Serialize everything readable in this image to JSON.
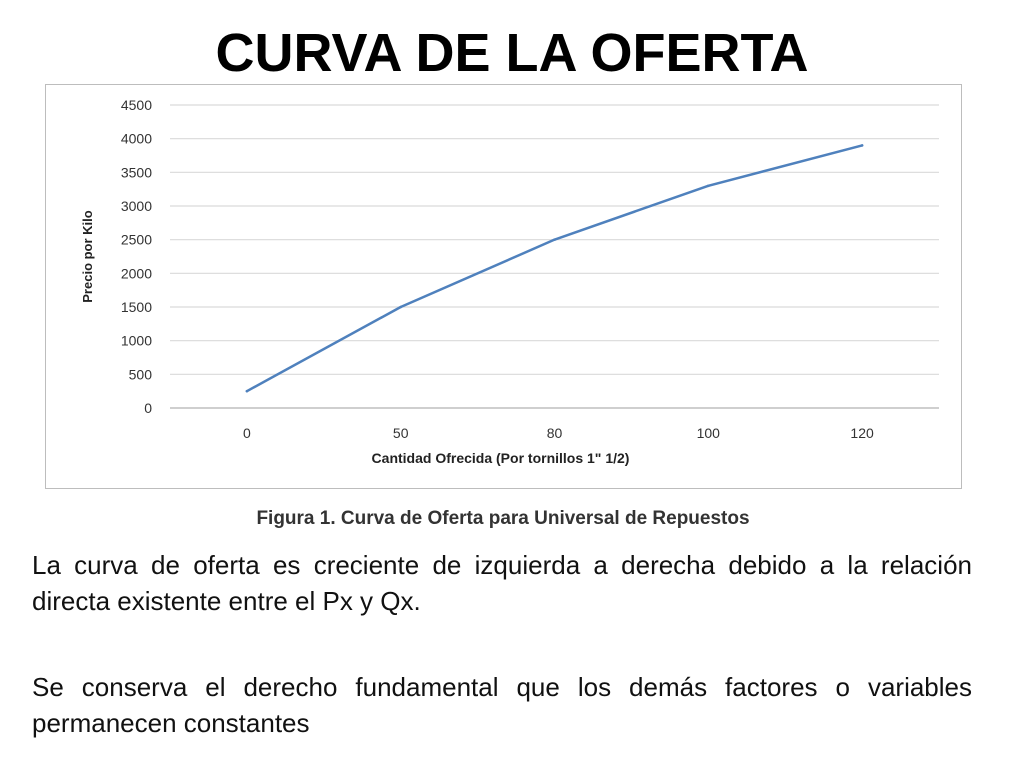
{
  "slide": {
    "title": "CURVA DE LA OFERTA",
    "caption": "Figura 1. Curva de Oferta para Universal de Repuestos",
    "paragraphs": [
      "La curva de oferta es creciente de izquierda a derecha debido a la relación directa existente entre el Px y Qx.",
      "Se conserva el derecho fundamental que los demás factores o variables permanecen constantes"
    ]
  },
  "chart_data": {
    "type": "line",
    "x": [
      "0",
      "50",
      "80",
      "100",
      "120"
    ],
    "series": [
      {
        "values": [
          250,
          1500,
          2500,
          3300,
          3900
        ]
      }
    ],
    "xlabel": "Cantidad Ofrecida (Por tornillos 1\" 1/2)",
    "ylabel": "Precio por Kilo",
    "ylim": [
      0,
      4500
    ],
    "yticks": [
      0,
      500,
      1000,
      1500,
      2000,
      2500,
      3000,
      3500,
      4000,
      4500
    ],
    "grid": true,
    "legend": "none",
    "colors": {
      "line": "#4f81bd",
      "grid": "#d9d9d9",
      "axis": "#bfbfbf"
    }
  }
}
